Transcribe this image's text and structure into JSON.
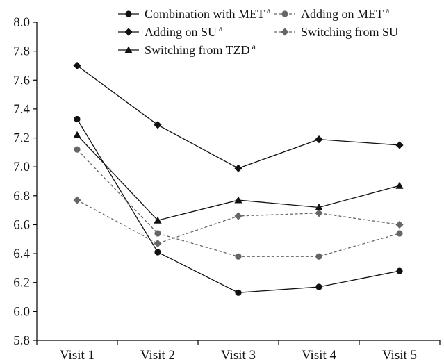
{
  "chart_data": {
    "type": "line",
    "title": "",
    "xlabel": "",
    "ylabel": "",
    "categories": [
      "Visit 1",
      "Visit 2",
      "Visit 3",
      "Visit 4",
      "Visit 5"
    ],
    "ylim": [
      5.8,
      8.0
    ],
    "yticks": [
      "5.8",
      "6.0",
      "6.2",
      "6.4",
      "6.6",
      "6.8",
      "7.0",
      "7.2",
      "7.4",
      "7.6",
      "7.8",
      "8.0"
    ],
    "grid": false,
    "legend_position": "top",
    "series": [
      {
        "name": "Combination with MET",
        "sup": "a",
        "marker": "circle",
        "dashed": false,
        "color": "#111111",
        "values": [
          7.33,
          6.41,
          6.13,
          6.17,
          6.28
        ]
      },
      {
        "name": "Adding on MET",
        "sup": "a",
        "marker": "circle",
        "dashed": true,
        "color": "#666666",
        "values": [
          7.12,
          6.54,
          6.38,
          6.38,
          6.54
        ]
      },
      {
        "name": "Adding on SU",
        "sup": "a",
        "marker": "diamond",
        "dashed": false,
        "color": "#111111",
        "values": [
          7.7,
          7.29,
          6.99,
          7.19,
          7.15
        ]
      },
      {
        "name": "Switching from SU",
        "sup": "",
        "marker": "diamond",
        "dashed": true,
        "color": "#666666",
        "values": [
          6.77,
          6.47,
          6.66,
          6.68,
          6.6
        ]
      },
      {
        "name": "Switching from TZD",
        "sup": "a",
        "marker": "triangle",
        "dashed": false,
        "color": "#111111",
        "values": [
          7.22,
          6.63,
          6.77,
          6.72,
          6.87
        ]
      }
    ]
  }
}
